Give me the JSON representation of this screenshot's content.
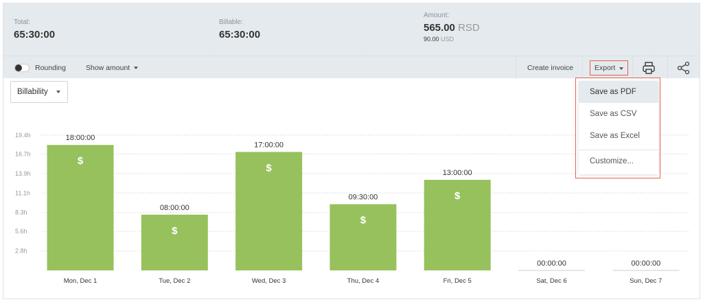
{
  "summary": {
    "total_label": "Total:",
    "total": "65:30:00",
    "billable_label": "Billable:",
    "billable": "65:30:00",
    "amount_label": "Amount:",
    "amount": "565.00",
    "amount_currency": "RSD",
    "amount_secondary": "90.00",
    "amount_secondary_currency": "USD"
  },
  "toolbar": {
    "rounding": "Rounding",
    "rounding_on": false,
    "show_amount": "Show amount",
    "create_invoice": "Create invoice",
    "export": "Export",
    "print_icon": "printer-icon",
    "share_icon": "share-icon"
  },
  "billability": "Billability",
  "export_menu": [
    "Save as PDF",
    "Save as CSV",
    "Save as Excel",
    "Customize..."
  ],
  "colors": {
    "bar": "#97c15c",
    "accent": "#e8604c"
  },
  "chart_data": {
    "type": "bar",
    "categories": [
      "Mon, Dec 1",
      "Tue, Dec 2",
      "Wed, Dec 3",
      "Thu, Dec 4",
      "Fri, Dec 5",
      "Sat, Dec 6",
      "Sun, Dec 7"
    ],
    "values": [
      18,
      8,
      17,
      9.5,
      13,
      0,
      0
    ],
    "labels": [
      "18:00:00",
      "08:00:00",
      "17:00:00",
      "09:30:00",
      "13:00:00",
      "00:00:00",
      "00:00:00"
    ],
    "billable_marker": "$",
    "yticks": [
      2.8,
      5.6,
      8.3,
      11.1,
      13.9,
      16.7,
      19.4
    ],
    "ytick_labels": [
      "2.8h",
      "5.6h",
      "8.3h",
      "11.1h",
      "13.9h",
      "16.7h",
      "19.4h"
    ],
    "ylim": [
      0,
      19.4
    ],
    "grid": true
  }
}
